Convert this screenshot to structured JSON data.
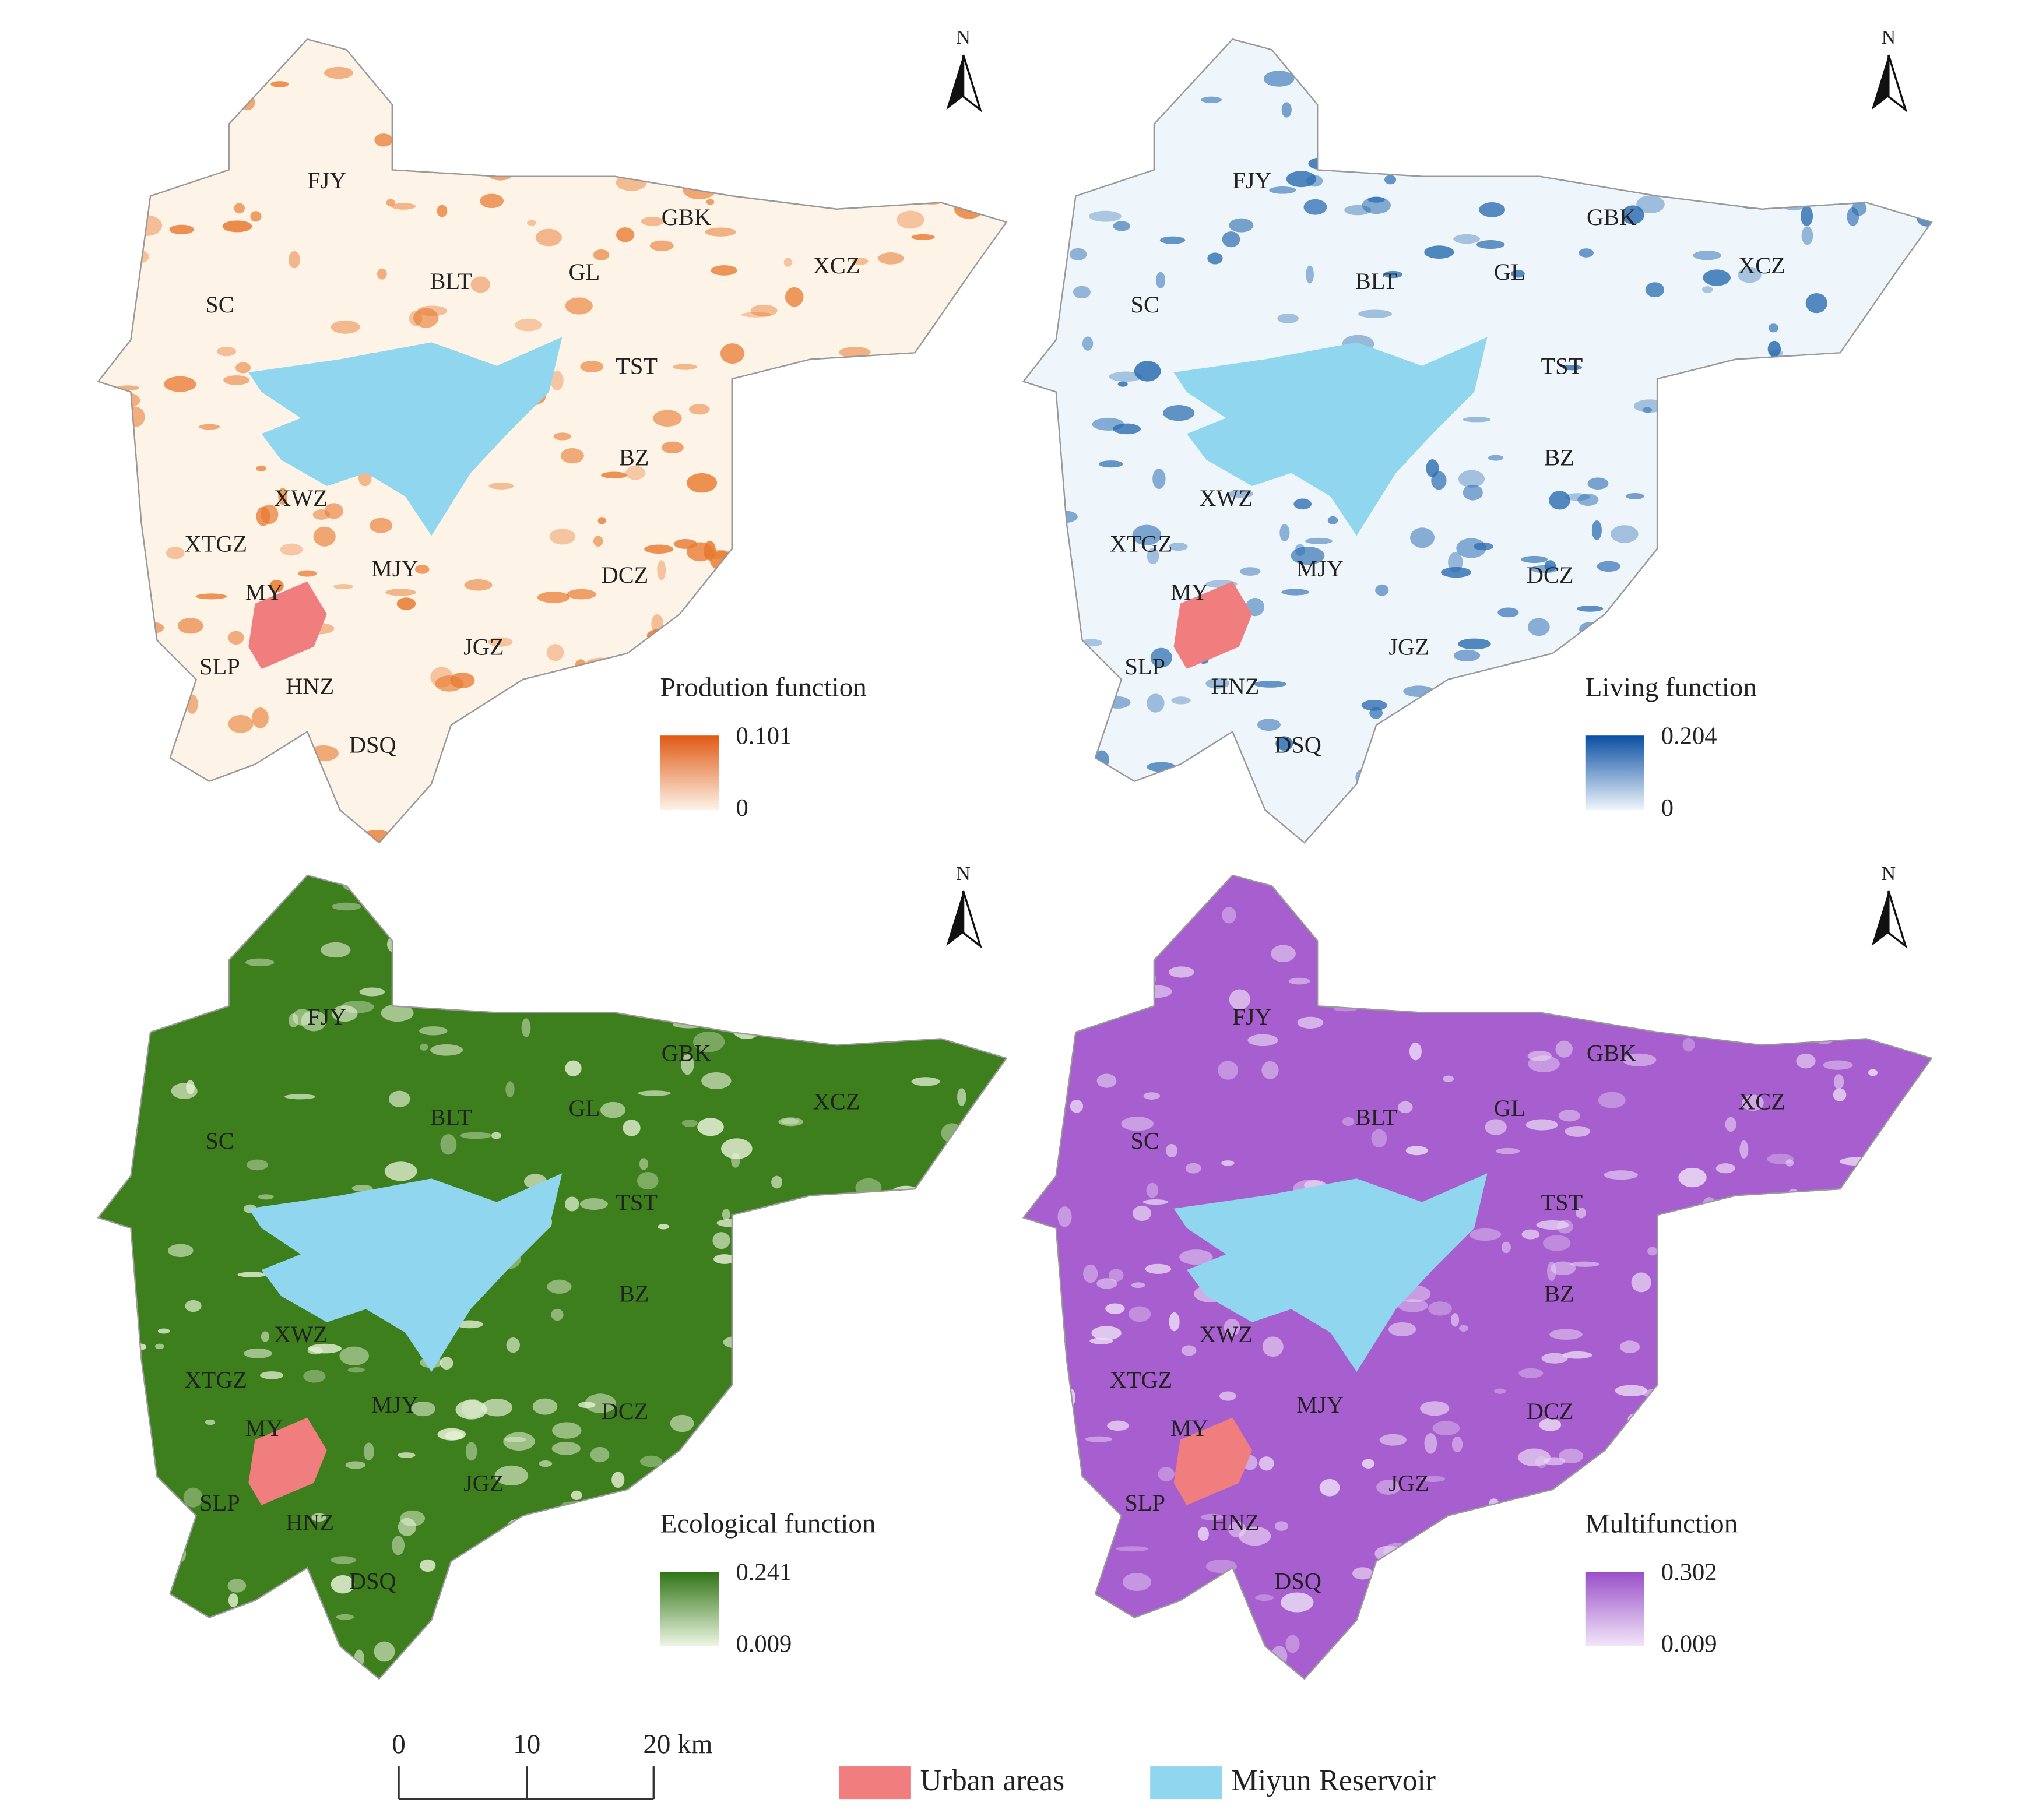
{
  "panels": [
    {
      "title": "Prodution function",
      "legend_max": "0.101",
      "legend_min": "0",
      "north": "N",
      "labels": [
        "FJY",
        "GBK",
        "XCZ",
        "BLT",
        "GL",
        "SC",
        "TST",
        "BZ",
        "XWZ",
        "XTGZ",
        "MJY",
        "MY",
        "DCZ",
        "JGZ",
        "SLP",
        "HNZ",
        "DSQ"
      ]
    },
    {
      "title": "Living function",
      "legend_max": "0.204",
      "legend_min": "0",
      "north": "N",
      "labels": [
        "FJY",
        "GBK",
        "XCZ",
        "BLT",
        "GL",
        "SC",
        "TST",
        "BZ",
        "XWZ",
        "XTGZ",
        "MJY",
        "MY",
        "DCZ",
        "JGZ",
        "SLP",
        "HNZ",
        "DSQ"
      ]
    },
    {
      "title": "Ecological function",
      "legend_max": "0.241",
      "legend_min": "0.009",
      "north": "N",
      "labels": [
        "FJY",
        "GBK",
        "XCZ",
        "BLT",
        "GL",
        "SC",
        "TST",
        "BZ",
        "XWZ",
        "XTGZ",
        "MJY",
        "MY",
        "DCZ",
        "JGZ",
        "SLP",
        "HNZ",
        "DSQ"
      ]
    },
    {
      "title": "Multifunction",
      "legend_max": "0.302",
      "legend_min": "0.009",
      "north": "N",
      "labels": [
        "FJY",
        "GBK",
        "XCZ",
        "BLT",
        "GL",
        "SC",
        "TST",
        "BZ",
        "XWZ",
        "XTGZ",
        "MJY",
        "MY",
        "DCZ",
        "JGZ",
        "SLP",
        "HNZ",
        "DSQ"
      ]
    }
  ],
  "scale_bar": {
    "ticks": [
      "0",
      "10",
      "20 km"
    ]
  },
  "legend": {
    "items": [
      "Urban areas",
      "Miyun Reservoir"
    ]
  }
}
